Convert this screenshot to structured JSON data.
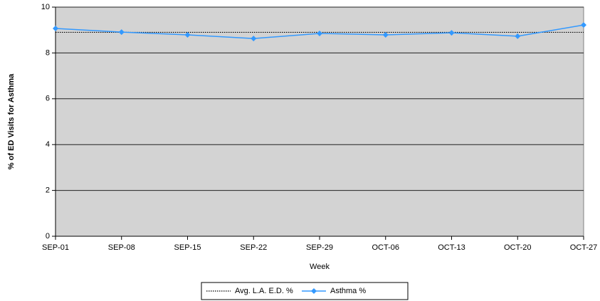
{
  "chart_data": {
    "type": "line",
    "x_label": "Week",
    "y_label": "% of ED Visits for Asthma",
    "categories": [
      "SEP-01",
      "SEP-08",
      "SEP-15",
      "SEP-22",
      "SEP-29",
      "OCT-06",
      "OCT-13",
      "OCT-20",
      "OCT-27"
    ],
    "series": [
      {
        "name": "Avg. L.A. E.D. %",
        "color": "#000000",
        "style": "dotted",
        "values": [
          8.9,
          8.9,
          8.9,
          8.9,
          8.9,
          8.9,
          8.9,
          8.9,
          8.9
        ]
      },
      {
        "name": "Asthma %",
        "color": "#3399ff",
        "style": "solid",
        "marker": "diamond",
        "values": [
          9.07,
          8.91,
          8.79,
          8.63,
          8.85,
          8.79,
          8.88,
          8.73,
          9.22
        ]
      }
    ],
    "ylim": [
      0,
      10
    ],
    "yticks": [
      0,
      2,
      4,
      6,
      8,
      10
    ],
    "grid": true
  }
}
